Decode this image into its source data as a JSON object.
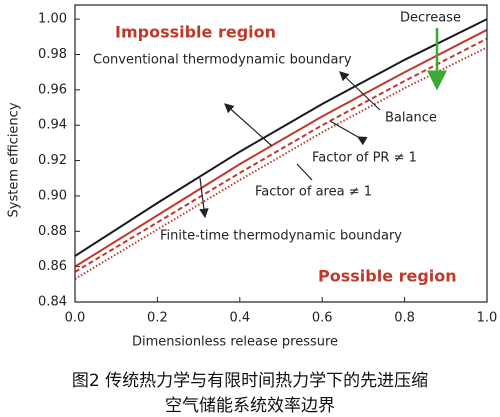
{
  "chart_data": {
    "type": "line",
    "x": [
      0,
      0.2,
      0.4,
      0.6,
      0.8,
      1.0
    ],
    "series": [
      {
        "name": "Conventional thermodynamic boundary",
        "color": "#1a1a1a",
        "style": "solid",
        "values": [
          0.866,
          0.896,
          0.925,
          0.952,
          0.977,
          1.0
        ]
      },
      {
        "name": "Balance",
        "color": "#c0392b",
        "style": "solid",
        "values": [
          0.86,
          0.889,
          0.918,
          0.945,
          0.97,
          0.994
        ]
      },
      {
        "name": "Factor of PR ≠ 1",
        "color": "#c0392b",
        "style": "dashed",
        "values": [
          0.857,
          0.885,
          0.913,
          0.94,
          0.965,
          0.989
        ]
      },
      {
        "name": "Factor of area ≠ 1",
        "color": "#c0392b",
        "style": "dotted",
        "values": [
          0.853,
          0.881,
          0.909,
          0.936,
          0.961,
          0.984
        ]
      }
    ],
    "xlabel": "Dimensionless release pressure",
    "ylabel": "System efficiency",
    "xlim": [
      0,
      1
    ],
    "ylim": [
      0.84,
      1.008
    ],
    "xticks": [
      {
        "value": 0,
        "label": "0.0"
      },
      {
        "value": 0.2,
        "label": "0.2"
      },
      {
        "value": 0.4,
        "label": "0.4"
      },
      {
        "value": 0.6,
        "label": "0.6"
      },
      {
        "value": 0.8,
        "label": "0.8"
      },
      {
        "value": 1,
        "label": "1.0"
      }
    ],
    "yticks": [
      {
        "value": 0.84,
        "label": "0.84"
      },
      {
        "value": 0.86,
        "label": "0.86"
      },
      {
        "value": 0.88,
        "label": "0.88"
      },
      {
        "value": 0.9,
        "label": "0.90"
      },
      {
        "value": 0.92,
        "label": "0.92"
      },
      {
        "value": 0.94,
        "label": "0.94"
      },
      {
        "value": 0.96,
        "label": "0.96"
      },
      {
        "value": 0.98,
        "label": "0.98"
      },
      {
        "value": 1.0,
        "label": "1.00"
      }
    ],
    "annotations": [
      "Impossible region",
      "Decrease",
      "Possible region",
      "Finite-time thermodynamic boundary"
    ],
    "caption": [
      "图2  传统热力学与有限时间热力学下的先进压缩",
      "空气储能系统效率边界"
    ]
  }
}
